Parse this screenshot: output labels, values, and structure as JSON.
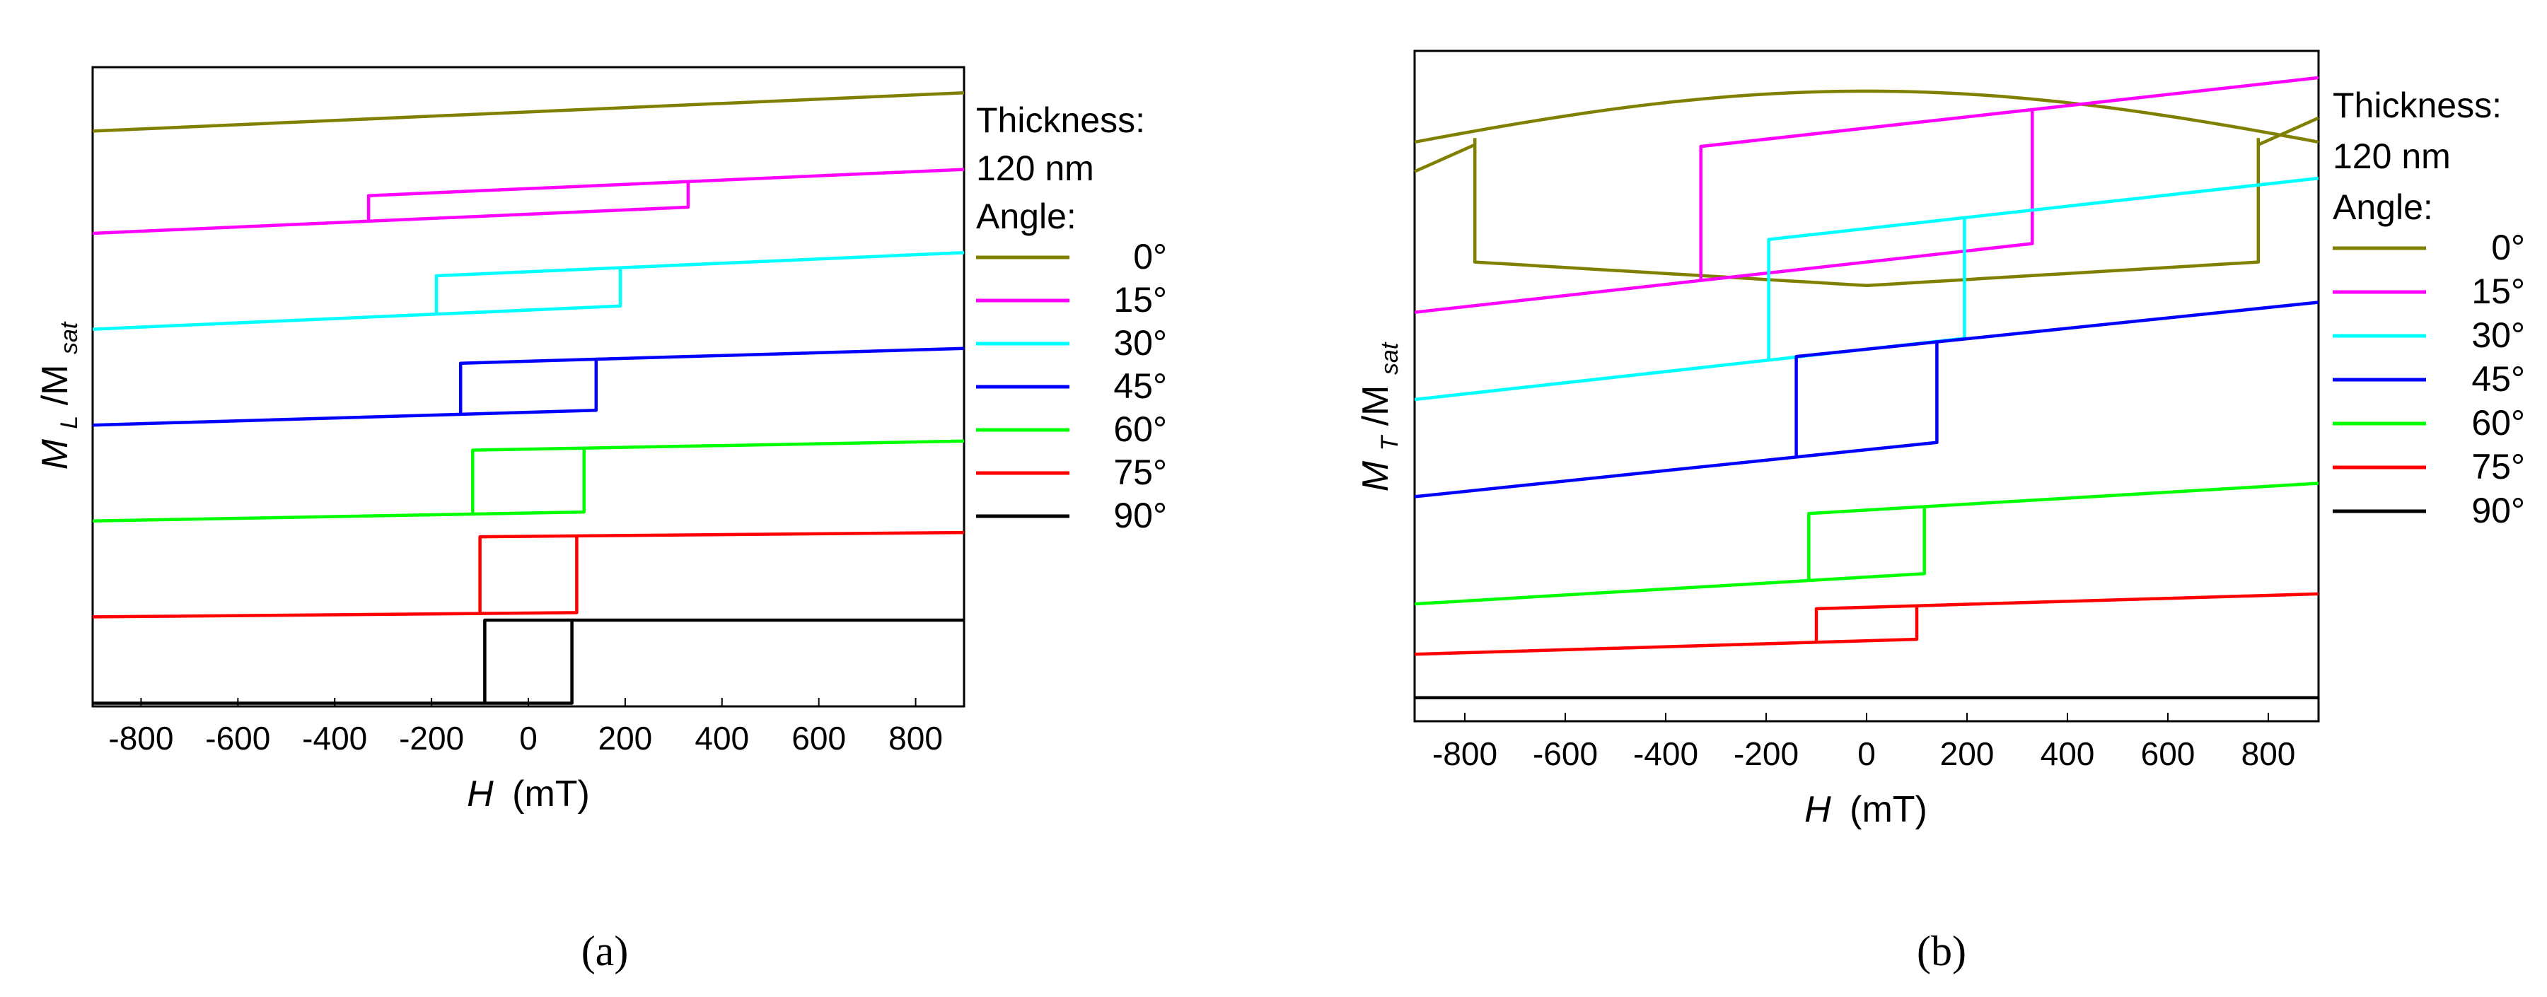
{
  "figure": {
    "caption_a": "(a)",
    "caption_b": "(b)"
  },
  "chart_data": [
    {
      "panel": "a",
      "type": "line",
      "xlabel": "H (mT)",
      "xlabel_var": "H",
      "xlabel_unit": "(mT)",
      "ylabel_main": "M",
      "ylabel_sub": "L",
      "ylabel_div": "/M",
      "ylabel_sub2": "sat",
      "xlim": [
        -900,
        900
      ],
      "ylim": [
        0,
        1
      ],
      "xticks": [
        -800,
        -600,
        -400,
        -200,
        0,
        200,
        400,
        600,
        800
      ],
      "legend_title": [
        "Thickness:",
        "120 nm",
        "Angle:"
      ],
      "series": [
        {
          "name": "0°",
          "color": "#808000",
          "offset": 0.9,
          "slope": 0.06,
          "hc": 0,
          "gap": 0.0
        },
        {
          "name": "15°",
          "color": "#ff00ff",
          "offset": 0.76,
          "slope": 0.06,
          "hc": 330,
          "gap": 0.04
        },
        {
          "name": "30°",
          "color": "#00ffff",
          "offset": 0.62,
          "slope": 0.06,
          "hc": 190,
          "gap": 0.06
        },
        {
          "name": "45°",
          "color": "#0000ff",
          "offset": 0.48,
          "slope": 0.04,
          "hc": 140,
          "gap": 0.08
        },
        {
          "name": "60°",
          "color": "#00ff00",
          "offset": 0.34,
          "slope": 0.025,
          "hc": 115,
          "gap": 0.1
        },
        {
          "name": "75°",
          "color": "#ff0000",
          "offset": 0.2,
          "slope": 0.012,
          "hc": 100,
          "gap": 0.12
        },
        {
          "name": "90°",
          "color": "#000000",
          "offset": 0.07,
          "slope": 0.0,
          "hc": 90,
          "gap": 0.13
        }
      ]
    },
    {
      "panel": "b",
      "type": "line",
      "xlabel": "H (mT)",
      "xlabel_var": "H",
      "xlabel_unit": "(mT)",
      "ylabel_main": "M",
      "ylabel_sub": "T",
      "ylabel_div": "/M",
      "ylabel_sub2": "sat",
      "xlim": [
        -900,
        900
      ],
      "ylim": [
        0,
        1
      ],
      "xticks": [
        -800,
        -600,
        -400,
        -200,
        0,
        200,
        400,
        600,
        800
      ],
      "legend_title": [
        "Thickness:",
        "120 nm",
        "Angle:"
      ],
      "series": [
        {
          "name": "0°",
          "color": "#808000",
          "offset": 0.85,
          "slope": 0.1,
          "hc": 780,
          "gap": 0.2,
          "shape": "lens"
        },
        {
          "name": "15°",
          "color": "#ff00ff",
          "offset": 0.71,
          "slope": 0.15,
          "hc": 330,
          "gap": 0.2
        },
        {
          "name": "30°",
          "color": "#00ffff",
          "offset": 0.57,
          "slope": 0.15,
          "hc": 195,
          "gap": 0.18
        },
        {
          "name": "45°",
          "color": "#0000ff",
          "offset": 0.41,
          "slope": 0.14,
          "hc": 140,
          "gap": 0.15
        },
        {
          "name": "60°",
          "color": "#00ff00",
          "offset": 0.225,
          "slope": 0.08,
          "hc": 115,
          "gap": 0.1
        },
        {
          "name": "75°",
          "color": "#ff0000",
          "offset": 0.125,
          "slope": 0.04,
          "hc": 100,
          "gap": 0.05
        },
        {
          "name": "90°",
          "color": "#000000",
          "offset": 0.035,
          "slope": 0.0,
          "hc": 0,
          "gap": 0.0
        }
      ]
    }
  ]
}
